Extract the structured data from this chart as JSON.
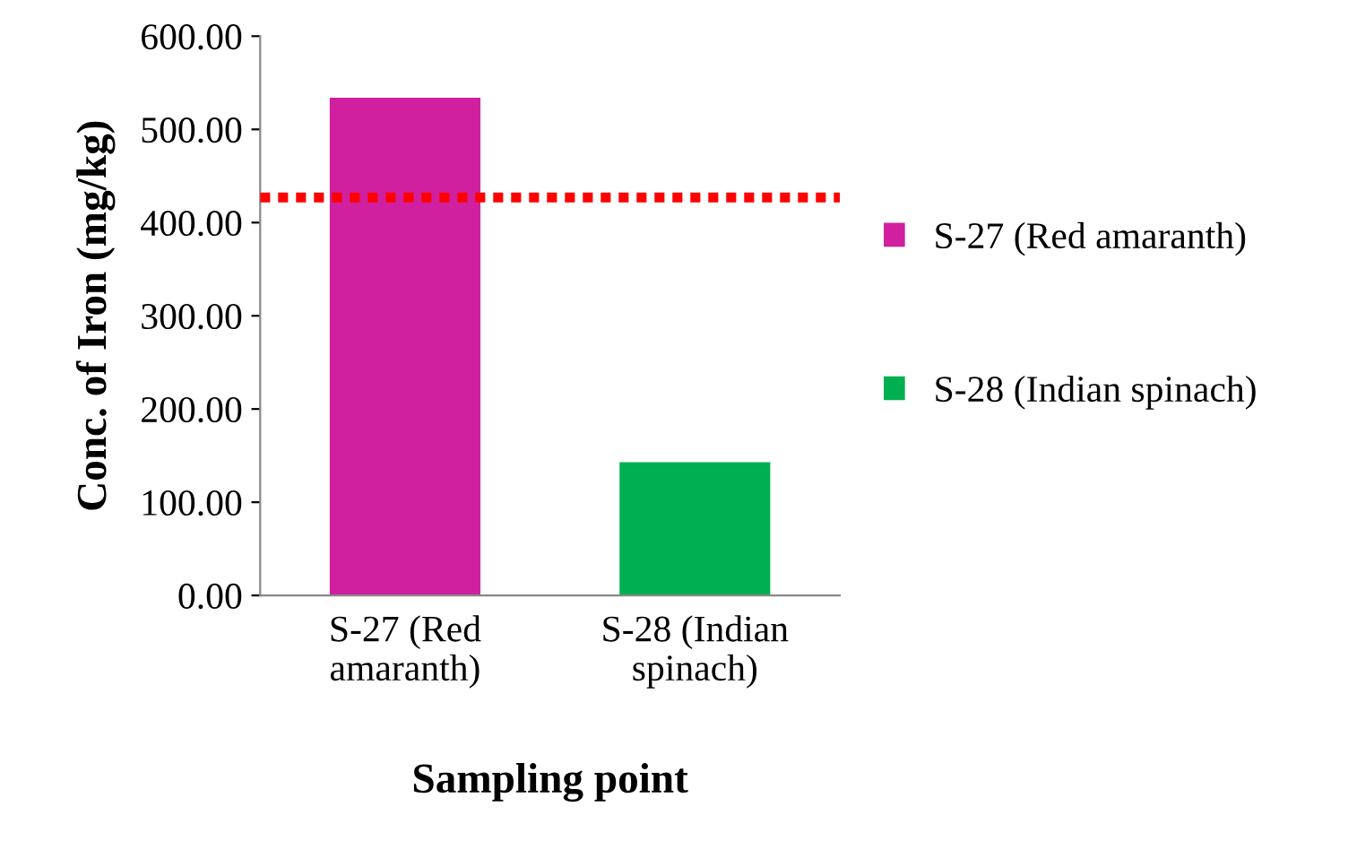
{
  "chart_data": {
    "type": "bar",
    "xlabel": "Sampling point",
    "ylabel": "Conc. of Iron (mg/kg)",
    "categories": [
      "S-27 (Red amaranth)",
      "S-28 (Indian spinach)"
    ],
    "series": [
      {
        "name": "S-27 (Red amaranth)",
        "color": "#d020a0",
        "values": [
          534,
          null
        ]
      },
      {
        "name": "S-28 (Indian spinach)",
        "color": "#00b050",
        "values": [
          null,
          143
        ]
      }
    ],
    "ylim": [
      0,
      600
    ],
    "yticks": [
      {
        "value": 0,
        "label": "0.00"
      },
      {
        "value": 100,
        "label": "100.00"
      },
      {
        "value": 200,
        "label": "200.00"
      },
      {
        "value": 300,
        "label": "300.00"
      },
      {
        "value": 400,
        "label": "400.00"
      },
      {
        "value": 500,
        "label": "500.00"
      },
      {
        "value": 600,
        "label": "600.00"
      }
    ],
    "ref_lines": [
      {
        "axis": "y",
        "value": 427,
        "color": "#ff0000",
        "line_style": "dotted"
      }
    ],
    "grid": false,
    "legend": "right"
  }
}
